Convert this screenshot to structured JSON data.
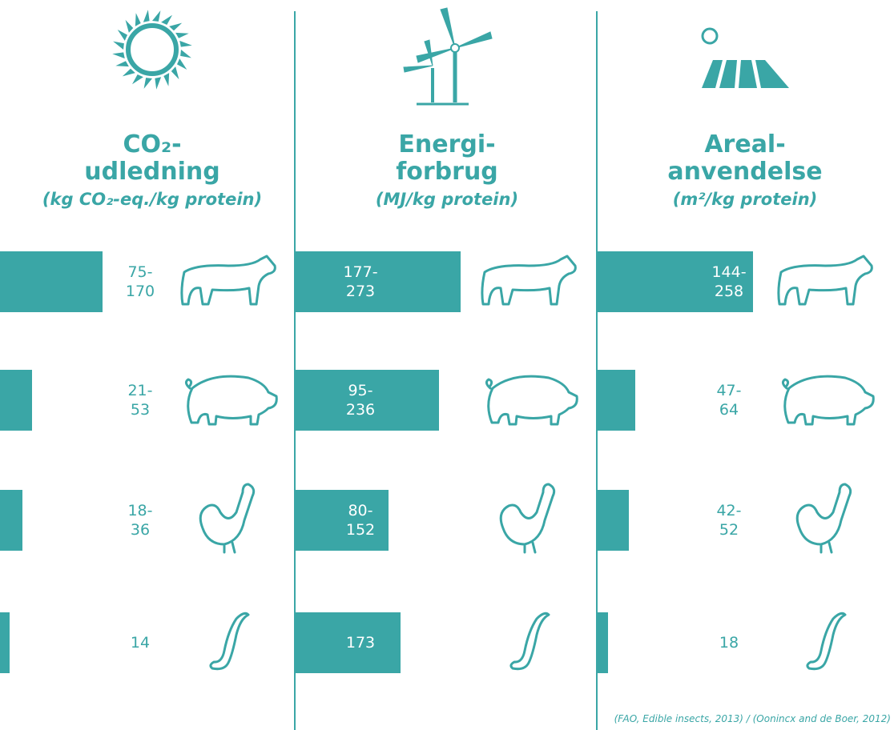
{
  "panels": [
    {
      "title_lines": [
        "CO₂-",
        "udledning"
      ],
      "unit": "(kg CO₂-eq./kg protein)",
      "rows": [
        {
          "label": "75-170"
        },
        {
          "label": "21-53"
        },
        {
          "label": "18-36"
        },
        {
          "label": "14"
        }
      ]
    },
    {
      "title_lines": [
        "Energi-",
        "forbrug"
      ],
      "unit": "(MJ/kg protein)",
      "rows": [
        {
          "label": "177-273"
        },
        {
          "label": "95-236"
        },
        {
          "label": "80-152"
        },
        {
          "label": "173"
        }
      ]
    },
    {
      "title_lines": [
        "Areal-",
        "anvendelse"
      ],
      "unit": "(m²/kg protein)",
      "rows": [
        {
          "label": "144-258"
        },
        {
          "label": "47-64"
        },
        {
          "label": "42-52"
        },
        {
          "label": "18"
        }
      ]
    }
  ],
  "source": "(FAO, Edible insects, 2013) / (Oonincx and de Boer, 2012)"
}
